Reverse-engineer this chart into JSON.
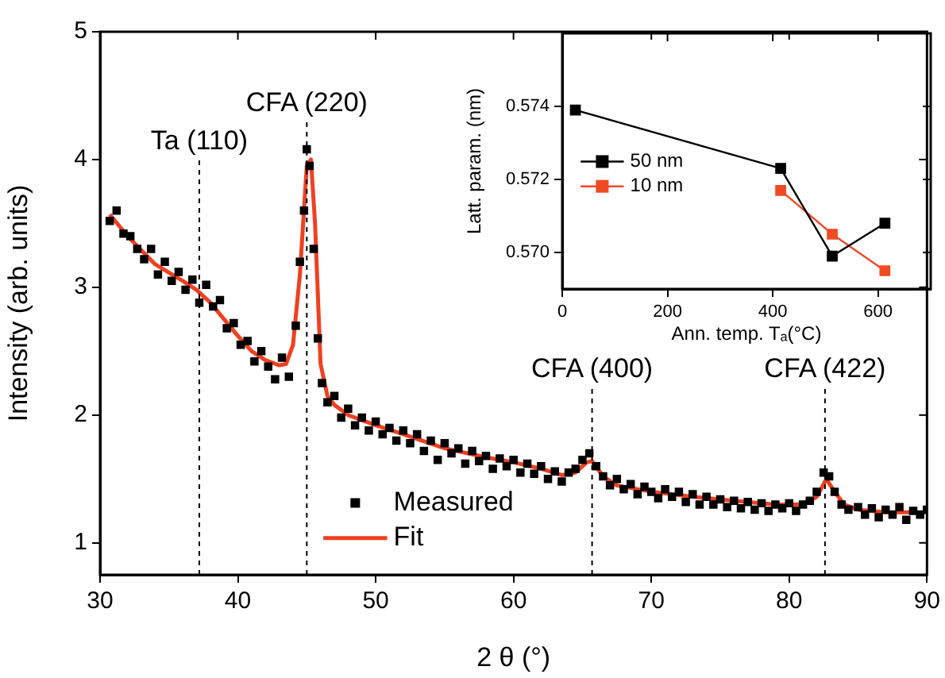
{
  "chart_data": [
    {
      "type": "scatter",
      "xlabel": "2 θ (°)",
      "ylabel": "Intensity (arb. units)",
      "xlim": [
        30,
        90
      ],
      "ylim": [
        0.75,
        5
      ],
      "xticks": [
        30,
        40,
        50,
        60,
        70,
        80,
        90
      ],
      "yticks": [
        1,
        2,
        3,
        4,
        5
      ],
      "legend": "bottom",
      "series": [
        {
          "name": "Measured",
          "type": "scatter",
          "marker": "square",
          "color": "#000000",
          "x": [
            30.7,
            31.2,
            31.7,
            32.2,
            32.7,
            33.2,
            33.7,
            34.2,
            34.7,
            35.2,
            35.7,
            36.2,
            36.7,
            37.2,
            37.7,
            38.2,
            38.7,
            39.2,
            39.7,
            40.2,
            40.7,
            41.2,
            41.7,
            42.2,
            42.7,
            43.2,
            43.7,
            44.2,
            44.5,
            44.8,
            45.0,
            45.2,
            45.5,
            45.8,
            46.1,
            46.5,
            47.0,
            47.5,
            48.0,
            48.5,
            49.0,
            49.5,
            50.0,
            50.5,
            51.0,
            51.5,
            52.0,
            52.5,
            53.0,
            53.5,
            54.0,
            54.5,
            55.0,
            55.5,
            56.0,
            56.5,
            57.0,
            57.5,
            58.0,
            58.5,
            59.0,
            59.5,
            60.0,
            60.5,
            61.0,
            61.5,
            62.0,
            62.5,
            63.0,
            63.5,
            64.0,
            64.5,
            65.0,
            65.5,
            66.0,
            66.5,
            67.0,
            67.5,
            68.0,
            68.5,
            69.0,
            69.5,
            70.0,
            70.5,
            71.0,
            71.5,
            72.0,
            72.5,
            73.0,
            73.5,
            74.0,
            74.5,
            75.0,
            75.5,
            76.0,
            76.5,
            77.0,
            77.5,
            78.0,
            78.5,
            79.0,
            79.5,
            80.0,
            80.5,
            81.0,
            81.5,
            82.0,
            82.5,
            82.9,
            83.3,
            83.8,
            84.3,
            85.0,
            85.5,
            86.0,
            86.5,
            87.0,
            87.5,
            88.0,
            88.5,
            89.0,
            89.5,
            90.0
          ],
          "values": [
            3.52,
            3.6,
            3.42,
            3.4,
            3.3,
            3.22,
            3.3,
            3.1,
            3.2,
            3.05,
            3.12,
            2.98,
            3.06,
            2.88,
            3.02,
            2.85,
            2.9,
            2.68,
            2.72,
            2.55,
            2.58,
            2.42,
            2.5,
            2.38,
            2.28,
            2.45,
            2.3,
            2.7,
            3.2,
            3.6,
            4.08,
            3.95,
            3.3,
            2.6,
            2.25,
            2.1,
            2.15,
            1.98,
            2.05,
            1.92,
            1.98,
            1.88,
            1.95,
            1.85,
            1.9,
            1.8,
            1.88,
            1.78,
            1.85,
            1.72,
            1.8,
            1.65,
            1.78,
            1.7,
            1.74,
            1.62,
            1.72,
            1.64,
            1.68,
            1.58,
            1.66,
            1.6,
            1.65,
            1.55,
            1.62,
            1.54,
            1.6,
            1.5,
            1.56,
            1.48,
            1.55,
            1.58,
            1.65,
            1.7,
            1.6,
            1.52,
            1.45,
            1.5,
            1.42,
            1.46,
            1.38,
            1.44,
            1.4,
            1.35,
            1.42,
            1.36,
            1.4,
            1.32,
            1.38,
            1.3,
            1.36,
            1.3,
            1.34,
            1.28,
            1.33,
            1.27,
            1.32,
            1.26,
            1.31,
            1.25,
            1.3,
            1.27,
            1.31,
            1.25,
            1.3,
            1.33,
            1.4,
            1.55,
            1.52,
            1.4,
            1.3,
            1.26,
            1.28,
            1.22,
            1.27,
            1.2,
            1.26,
            1.22,
            1.28,
            1.18,
            1.25,
            1.22,
            1.26
          ]
        },
        {
          "name": "Fit",
          "type": "line",
          "marker": "none",
          "color": "#f04020",
          "x": [
            30.7,
            32,
            34,
            36,
            37,
            38,
            39,
            40,
            41,
            42,
            43,
            43.5,
            44,
            44.5,
            45,
            45.3,
            45.6,
            46,
            46.5,
            47,
            48,
            50,
            52,
            55,
            58,
            60,
            62,
            63.5,
            64.5,
            65.3,
            65.7,
            66.5,
            67.5,
            70,
            73,
            76,
            79,
            81,
            82,
            82.7,
            83.3,
            84,
            85,
            87,
            90
          ],
          "values": [
            3.57,
            3.4,
            3.18,
            3.05,
            2.98,
            2.88,
            2.75,
            2.62,
            2.5,
            2.43,
            2.39,
            2.4,
            2.55,
            3.1,
            3.95,
            4.0,
            3.5,
            2.4,
            2.15,
            2.08,
            2.0,
            1.92,
            1.85,
            1.74,
            1.67,
            1.63,
            1.58,
            1.53,
            1.55,
            1.63,
            1.64,
            1.52,
            1.45,
            1.4,
            1.36,
            1.33,
            1.3,
            1.3,
            1.36,
            1.5,
            1.4,
            1.3,
            1.26,
            1.24,
            1.24
          ]
        }
      ],
      "ref_lines": [
        {
          "axis": "x",
          "value": 37.2,
          "line_style": "dashed"
        },
        {
          "axis": "x",
          "value": 45,
          "line_style": "dashed"
        },
        {
          "axis": "x",
          "value": 65.7,
          "line_style": "dashed"
        },
        {
          "axis": "x",
          "value": 82.6,
          "line_style": "dashed"
        }
      ],
      "annotations": [
        {
          "text": "Ta (110)",
          "x": 37.2,
          "y": 4.0
        },
        {
          "text": "CFA (220)",
          "x": 45,
          "y": 4.3
        },
        {
          "text": "CFA (400)",
          "x": 65.7,
          "y": 2.22
        },
        {
          "text": "CFA (422)",
          "x": 82.6,
          "y": 2.22
        }
      ]
    },
    {
      "type": "line",
      "xlabel": "Ann. temp. Tₐ(°C)",
      "ylabel": "Latt. param. (nm)",
      "xlim": [
        0,
        700
      ],
      "ylim": [
        0.569,
        0.576
      ],
      "xticks": [
        0,
        200,
        400,
        600
      ],
      "yticks": [
        {
          "value": 0.57,
          "label": "0.570"
        },
        {
          "value": 0.572,
          "label": "0.572"
        },
        {
          "value": 0.574,
          "label": "0.574"
        }
      ],
      "legend": "left",
      "marker": "square",
      "series": [
        {
          "name": "50 nm",
          "color": "#000000",
          "x": [
            25,
            415,
            513,
            613
          ],
          "values": [
            0.5739,
            0.5723,
            0.5699,
            0.5708
          ]
        },
        {
          "name": "10 nm",
          "color": "#f04a23",
          "x": [
            415,
            513,
            613
          ],
          "values": [
            0.5717,
            0.5705,
            0.5695
          ]
        }
      ]
    }
  ]
}
